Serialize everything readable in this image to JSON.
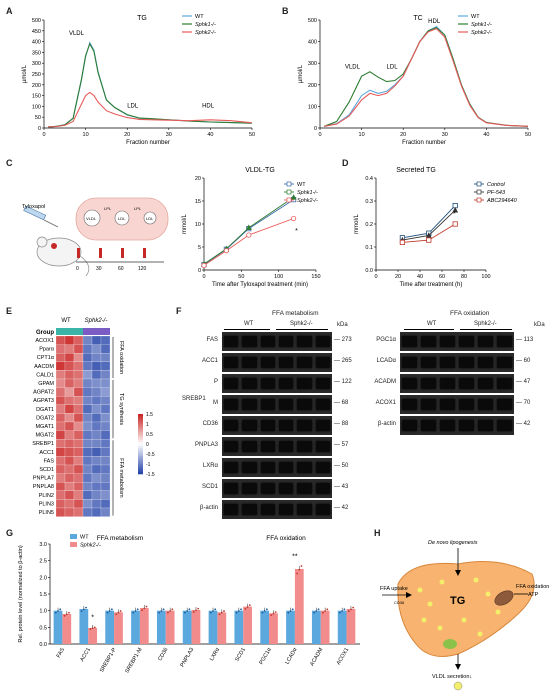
{
  "panels": {
    "A": {
      "letter": "A",
      "chart_data": {
        "type": "line",
        "title": "TG",
        "xlabel": "Fraction number",
        "ylabel": "µmol/L",
        "xlim": [
          0,
          50
        ],
        "ylim": [
          0,
          500
        ],
        "xticks": [
          0,
          10,
          20,
          30,
          40,
          50
        ],
        "yticks": [
          0,
          50,
          100,
          150,
          200,
          250,
          300,
          350,
          400,
          450,
          500
        ],
        "annotations": [
          "VLDL",
          "LDL",
          "HDL"
        ],
        "series": [
          {
            "name": "WT",
            "color": "#5aa8de",
            "x": [
              1,
              3,
              5,
              7,
              9,
              10,
              11,
              12,
              13,
              15,
              17,
              20,
              23,
              26,
              30,
              35,
              40,
              45,
              50
            ],
            "y": [
              5,
              8,
              15,
              45,
              220,
              330,
              395,
              360,
              260,
              130,
              95,
              60,
              45,
              42,
              38,
              32,
              28,
              25,
              22
            ]
          },
          {
            "name": "Sphk1-/-",
            "color": "#2e7d32",
            "x": [
              1,
              3,
              5,
              7,
              9,
              10,
              11,
              12,
              13,
              15,
              17,
              20,
              23,
              26,
              30,
              35,
              40,
              45,
              50
            ],
            "y": [
              5,
              8,
              15,
              45,
              225,
              335,
              390,
              355,
              255,
              130,
              95,
              62,
              46,
              43,
              38,
              32,
              28,
              25,
              22
            ]
          },
          {
            "name": "Sphk2-/-",
            "color": "#e85a5a",
            "x": [
              1,
              3,
              5,
              7,
              9,
              10,
              11,
              12,
              13,
              15,
              17,
              20,
              23,
              26,
              30,
              35,
              40,
              45,
              50
            ],
            "y": [
              5,
              7,
              12,
              30,
              110,
              150,
              165,
              150,
              120,
              80,
              65,
              48,
              40,
              38,
              36,
              34,
              38,
              34,
              24
            ]
          }
        ]
      }
    },
    "B": {
      "letter": "B",
      "chart_data": {
        "type": "line",
        "title": "TC",
        "xlabel": "Fraction number",
        "ylabel": "µmol/L",
        "xlim": [
          0,
          50
        ],
        "ylim": [
          0,
          500
        ],
        "xticks": [
          0,
          10,
          20,
          30,
          40,
          50
        ],
        "yticks": [
          0,
          100,
          200,
          300,
          400,
          500
        ],
        "annotations": [
          "VLDL",
          "LDL",
          "HDL"
        ],
        "series": [
          {
            "name": "WT",
            "color": "#5aa8de",
            "x": [
              1,
              4,
              7,
              10,
              12,
              14,
              16,
              18,
              20,
              22,
              24,
              26,
              28,
              30,
              32,
              34,
              36,
              38,
              40,
              45,
              50
            ],
            "y": [
              8,
              20,
              60,
              150,
              175,
              160,
              170,
              200,
              240,
              320,
              400,
              450,
              470,
              430,
              320,
              200,
              110,
              50,
              25,
              12,
              8
            ]
          },
          {
            "name": "Sphk1-/-",
            "color": "#2e7d32",
            "x": [
              1,
              4,
              7,
              10,
              12,
              14,
              16,
              18,
              20,
              22,
              24,
              26,
              28,
              30,
              32,
              34,
              36,
              38,
              40,
              45,
              50
            ],
            "y": [
              8,
              30,
              120,
              240,
              260,
              235,
              215,
              220,
              250,
              320,
              400,
              450,
              465,
              430,
              320,
              200,
              110,
              50,
              25,
              12,
              8
            ]
          },
          {
            "name": "Sphk2-/-",
            "color": "#e85a5a",
            "x": [
              1,
              4,
              7,
              10,
              12,
              14,
              16,
              18,
              20,
              22,
              24,
              26,
              28,
              30,
              32,
              34,
              36,
              38,
              40,
              45,
              50
            ],
            "y": [
              8,
              18,
              55,
              130,
              160,
              150,
              160,
              195,
              240,
              320,
              400,
              445,
              460,
              420,
              310,
              195,
              105,
              48,
              24,
              12,
              8
            ]
          }
        ]
      }
    },
    "C": {
      "letter": "C",
      "schematic": {
        "drug": "Tyloxapol",
        "labels": [
          "VLDL",
          "LPL",
          "LDL",
          "LPL",
          "LDL"
        ],
        "timepoints": [
          "0",
          "30",
          "60",
          "120"
        ]
      },
      "chart_data": {
        "type": "line",
        "title": "VLDL-TG",
        "xlabel": "Time after Tyloxapol treatment (min)",
        "ylabel": "mmol/L",
        "xlim": [
          0,
          150
        ],
        "ylim": [
          0,
          20
        ],
        "xticks": [
          0,
          50,
          100,
          150
        ],
        "yticks": [
          0,
          5,
          10,
          15,
          20
        ],
        "annotations": [
          "*"
        ],
        "series": [
          {
            "name": "WT",
            "color": "#3b6aa8",
            "marker": "square",
            "x": [
              0,
              30,
              60,
              120
            ],
            "y": [
              1.2,
              4.5,
              9.0,
              15.3
            ]
          },
          {
            "name": "Sphk1-/-",
            "color": "#2e7d32",
            "marker": "triangle",
            "x": [
              0,
              30,
              60,
              120
            ],
            "y": [
              1.3,
              4.6,
              9.2,
              15.8
            ]
          },
          {
            "name": "Sphk2-/-",
            "color": "#e85a5a",
            "marker": "circle",
            "x": [
              0,
              30,
              60,
              120
            ],
            "y": [
              1.0,
              4.2,
              7.6,
              11.2
            ]
          }
        ]
      }
    },
    "D": {
      "letter": "D",
      "chart_data": {
        "type": "line",
        "title": "Secreted TG",
        "xlabel": "Time after treatment (h)",
        "ylabel": "mmol/L",
        "xlim": [
          0,
          100
        ],
        "ylim": [
          0.0,
          0.4
        ],
        "xticks": [
          0,
          20,
          40,
          60,
          80,
          100
        ],
        "yticks": [
          0.0,
          0.1,
          0.2,
          0.3,
          0.4
        ],
        "annotations": [
          "*"
        ],
        "series": [
          {
            "name": "Control",
            "color": "#1f4e79",
            "marker": "square",
            "x": [
              24,
              48,
              72
            ],
            "y": [
              0.14,
              0.16,
              0.28
            ]
          },
          {
            "name": "PF-543",
            "color": "#333333",
            "marker": "triangle",
            "x": [
              24,
              48,
              72
            ],
            "y": [
              0.13,
              0.15,
              0.26
            ]
          },
          {
            "name": "ABC294640",
            "color": "#c0392b",
            "marker": "square",
            "x": [
              24,
              48,
              72
            ],
            "y": [
              0.12,
              0.13,
              0.2
            ]
          }
        ]
      }
    },
    "E": {
      "letter": "E",
      "heatmap": {
        "group_label": "Group",
        "column_groups": [
          "WT",
          "Sphk2-/-"
        ],
        "group_colors": [
          "#3bb3a6",
          "#7b5cc4"
        ],
        "genes": [
          "ACOX1",
          "Pparα",
          "CPT1α",
          "AACDM",
          "CALD1",
          "GPAM",
          "AGPAT2",
          "AGPAT3",
          "DGAT1",
          "DGAT2",
          "MGAT1",
          "MGAT2",
          "SREBP1",
          "ACC1",
          "FAS",
          "SCD1",
          "PNPLA7",
          "PNPLA8",
          "PLIN2",
          "PLIN3",
          "PLIN5"
        ],
        "sections": [
          "FFA oxidation",
          "TG synthesis",
          "FFA metabolism"
        ],
        "legend_ticks": [
          "1.5",
          "1",
          "0.5",
          "0",
          "-0.5",
          "-1",
          "-1.5"
        ],
        "values": [
          [
            1.2,
            1.4,
            1.1,
            -1.0,
            -1.3,
            -1.2
          ],
          [
            1.0,
            0.9,
            1.2,
            -1.1,
            -0.9,
            -1.2
          ],
          [
            1.1,
            1.3,
            0.8,
            -1.2,
            -1.0,
            -1.0
          ],
          [
            1.4,
            1.2,
            1.0,
            -1.1,
            -1.3,
            -1.2
          ],
          [
            0.9,
            1.1,
            1.0,
            -0.8,
            -1.2,
            -1.0
          ],
          [
            0.8,
            1.1,
            0.9,
            -1.0,
            -0.9,
            -0.9
          ],
          [
            1.0,
            0.7,
            1.2,
            -1.1,
            -1.0,
            -0.8
          ],
          [
            1.2,
            1.0,
            0.9,
            -1.0,
            -1.1,
            -1.0
          ],
          [
            0.9,
            1.3,
            1.0,
            -1.2,
            -0.9,
            -1.1
          ],
          [
            1.1,
            0.8,
            1.2,
            -1.0,
            -1.2,
            -0.9
          ],
          [
            1.0,
            1.2,
            0.8,
            -0.9,
            -1.1,
            -1.0
          ],
          [
            1.3,
            0.9,
            1.1,
            -1.1,
            -1.0,
            -1.2
          ],
          [
            1.0,
            1.1,
            1.0,
            -1.0,
            -1.0,
            -1.1
          ],
          [
            1.3,
            1.2,
            1.1,
            -1.2,
            -1.3,
            -1.1
          ],
          [
            1.0,
            1.2,
            0.9,
            -1.1,
            -1.0,
            -1.0
          ],
          [
            1.1,
            1.0,
            1.2,
            -1.0,
            -1.2,
            -1.1
          ],
          [
            0.9,
            1.1,
            1.0,
            -1.1,
            -0.9,
            -1.0
          ],
          [
            1.2,
            0.9,
            1.1,
            -1.0,
            -1.1,
            -1.1
          ],
          [
            1.0,
            1.2,
            0.9,
            -1.2,
            -1.0,
            -0.9
          ],
          [
            1.1,
            1.0,
            1.2,
            -0.9,
            -1.1,
            -1.2
          ],
          [
            1.2,
            1.1,
            1.0,
            -1.1,
            -1.2,
            -1.0
          ]
        ]
      }
    },
    "F": {
      "letter": "F",
      "left_title": "FFA metabolism",
      "right_title": "FFA oxidation",
      "col_groups": [
        "WT",
        "Sphk2-/-"
      ],
      "unit": "kDa",
      "left_rows": [
        {
          "label": "FAS",
          "kda": "273"
        },
        {
          "label": "ACC1",
          "kda": "265"
        },
        {
          "label": "P",
          "kda": "122"
        },
        {
          "label": "M",
          "kda": "68"
        },
        {
          "label": "CD36",
          "kda": "88"
        },
        {
          "label": "PNPLA3",
          "kda": "57"
        },
        {
          "label": "LXRα",
          "kda": "50"
        },
        {
          "label": "SCD1",
          "kda": "43"
        },
        {
          "label": "β-actin",
          "kda": "42"
        }
      ],
      "srebp_label": "SREBP1",
      "right_rows": [
        {
          "label": "PGC1α",
          "kda": "113"
        },
        {
          "label": "LCADα",
          "kda": "60"
        },
        {
          "label": "ACADM",
          "kda": "47"
        },
        {
          "label": "ACOX1",
          "kda": "70"
        },
        {
          "label": "β-actin",
          "kda": "42"
        }
      ]
    },
    "G": {
      "letter": "G",
      "chart_data": {
        "type": "bar",
        "left_title": "FFA metabolism",
        "right_title": "FFA oxidation",
        "ylabel": "Rel. protein level (normalized to β-actin)",
        "ylim": [
          0.0,
          3.0
        ],
        "yticks": [
          0.0,
          0.5,
          1.0,
          1.5,
          2.0,
          2.5,
          3.0
        ],
        "categories": [
          "FAS",
          "ACC1",
          "SREBP1-P",
          "SREBP1-M",
          "CD36",
          "PNPLA3",
          "LXRα",
          "SCD1",
          "PGC1α",
          "LCADα",
          "ACADM",
          "ACOX1"
        ],
        "annotations": [
          "*",
          "**"
        ],
        "series": [
          {
            "name": "WT",
            "color": "#5aa8de",
            "values": [
              1.0,
              1.05,
              1.0,
              1.0,
              1.0,
              1.0,
              1.0,
              1.0,
              1.0,
              1.0,
              1.0,
              1.0
            ]
          },
          {
            "name": "Sphk2-/-",
            "color": "#f28b8b",
            "values": [
              0.9,
              0.48,
              0.95,
              1.08,
              1.0,
              1.02,
              0.95,
              1.12,
              0.92,
              2.25,
              1.0,
              1.05
            ]
          }
        ]
      }
    },
    "H": {
      "letter": "H",
      "labels": {
        "denovo": "De novo lipogenesis",
        "uptake": "FFA uptake",
        "cd36": "CD36",
        "tg": "TG",
        "oxidation": "FFA oxidation",
        "atp": "ATP",
        "vldl": "VLDL secretion↓"
      }
    }
  }
}
